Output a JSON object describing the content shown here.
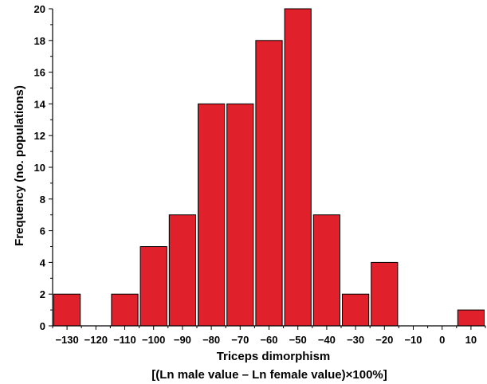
{
  "chart_data": {
    "type": "bar",
    "bin_left_edges": [
      -135,
      -125,
      -115,
      -105,
      -95,
      -85,
      -75,
      -65,
      -55,
      -45,
      -35,
      -25,
      -15,
      -5,
      5
    ],
    "bin_width": 10,
    "values": [
      2,
      0,
      2,
      5,
      7,
      14,
      14,
      18,
      20,
      7,
      2,
      4,
      0,
      0,
      1
    ],
    "x_tick_labels": [
      "−130",
      "−120",
      "−110",
      "−100",
      "−90",
      "−80",
      "−70",
      "−60",
      "−50",
      "−40",
      "−30",
      "−20",
      "−10",
      "0",
      "10"
    ],
    "x_ticks": [
      -130,
      -120,
      -110,
      -100,
      -90,
      -80,
      -70,
      -60,
      -50,
      -40,
      -30,
      -20,
      -10,
      0,
      10
    ],
    "y_ticks": [
      0,
      2,
      4,
      6,
      8,
      10,
      12,
      14,
      16,
      18,
      20
    ],
    "xlim": [
      -135,
      15
    ],
    "ylim": [
      0,
      20
    ],
    "xlabel_line1": "Triceps dimorphism",
    "xlabel_line2": "[(Ln male value – Ln female value)×100%]",
    "ylabel": "Frequency (no. populations)",
    "bar_color": "#e0202a",
    "grid": false
  }
}
